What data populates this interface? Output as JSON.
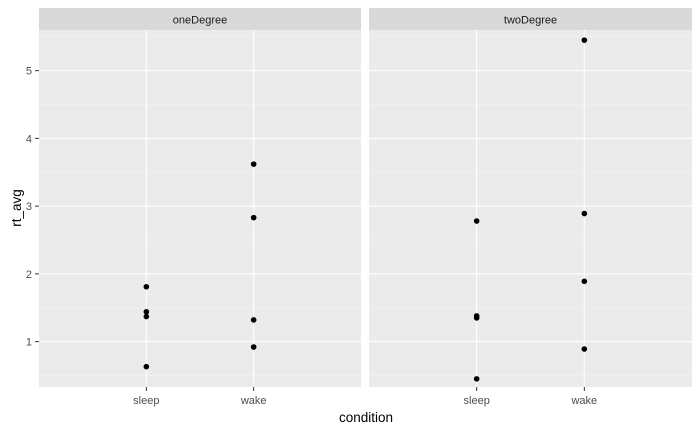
{
  "chart_data": {
    "type": "scatter",
    "xlabel": "condition",
    "ylabel": "rt_avg",
    "categories": [
      "sleep",
      "wake"
    ],
    "yticks": [
      1,
      2,
      3,
      4,
      5
    ],
    "ylim": [
      0.33,
      5.6
    ],
    "grid": true,
    "facets": [
      {
        "label": "oneDegree",
        "points": [
          {
            "x": "sleep",
            "y": 1.81
          },
          {
            "x": "sleep",
            "y": 1.44
          },
          {
            "x": "sleep",
            "y": 1.37
          },
          {
            "x": "sleep",
            "y": 0.63
          },
          {
            "x": "wake",
            "y": 3.62
          },
          {
            "x": "wake",
            "y": 2.83
          },
          {
            "x": "wake",
            "y": 1.32
          },
          {
            "x": "wake",
            "y": 0.92
          }
        ]
      },
      {
        "label": "twoDegree",
        "points": [
          {
            "x": "sleep",
            "y": 2.78
          },
          {
            "x": "sleep",
            "y": 1.38
          },
          {
            "x": "sleep",
            "y": 1.35
          },
          {
            "x": "sleep",
            "y": 0.45
          },
          {
            "x": "wake",
            "y": 5.45
          },
          {
            "x": "wake",
            "y": 2.89
          },
          {
            "x": "wake",
            "y": 1.89
          },
          {
            "x": "wake",
            "y": 0.89
          }
        ]
      }
    ],
    "colors": {
      "panel_background": "#EBEBEB",
      "strip_background": "#D9D9D9",
      "grid": "#FFFFFF",
      "points": "#000000"
    }
  }
}
